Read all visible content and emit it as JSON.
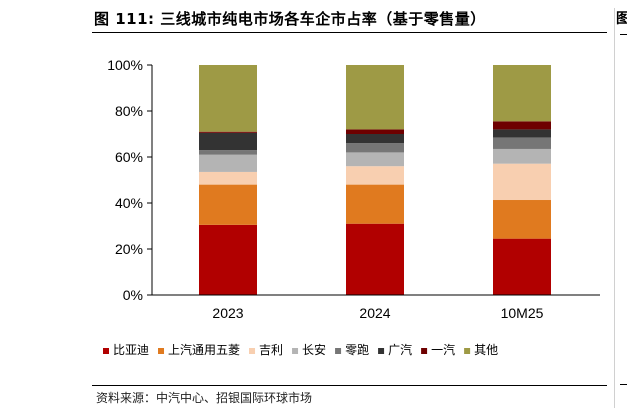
{
  "title": "图 111: 三线城市纯电市场各车企市占率（基于零售量）",
  "source": "资料来源：中汽中心、招银国际环球市场",
  "side": {
    "glyph": "图"
  },
  "chart_data": {
    "type": "bar",
    "stacked": true,
    "categories": [
      "2023",
      "2024",
      "10M25"
    ],
    "ylim": [
      0,
      100
    ],
    "yticks": [
      0,
      20,
      40,
      60,
      80,
      100
    ],
    "ytick_labels": [
      "0%",
      "20%",
      "40%",
      "60%",
      "80%",
      "100%"
    ],
    "grid": false,
    "legend_position": "bottom",
    "series": [
      {
        "name": "比亚迪",
        "color": "#b10000",
        "values": [
          30.5,
          31.0,
          24.5
        ]
      },
      {
        "name": "上汽通用五菱",
        "color": "#e07a1f",
        "values": [
          17.5,
          17.0,
          16.8
        ]
      },
      {
        "name": "吉利",
        "color": "#f8cfb0",
        "values": [
          5.5,
          8.0,
          15.8
        ]
      },
      {
        "name": "长安",
        "color": "#b4b4b4",
        "values": [
          7.5,
          6.0,
          6.4
        ]
      },
      {
        "name": "零跑",
        "color": "#767676",
        "values": [
          2.0,
          4.0,
          5.0
        ]
      },
      {
        "name": "广汽",
        "color": "#333333",
        "values": [
          7.5,
          4.0,
          3.5
        ]
      },
      {
        "name": "一汽",
        "color": "#6e0000",
        "values": [
          0.5,
          2.0,
          3.5
        ]
      },
      {
        "name": "其他",
        "color": "#9e9a45",
        "values": [
          29.0,
          28.0,
          24.5
        ]
      }
    ]
  }
}
